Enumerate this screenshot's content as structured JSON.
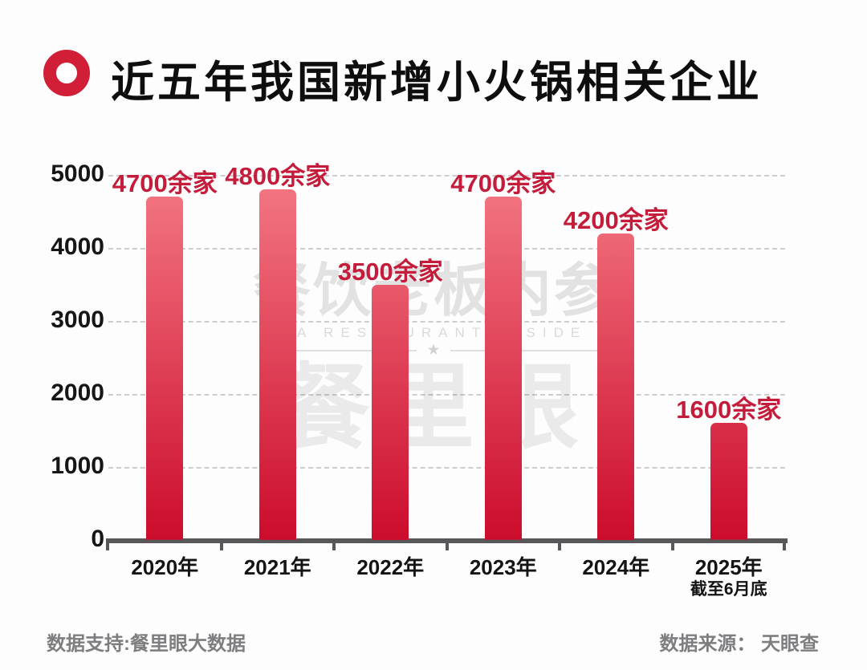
{
  "header": {
    "title": "近五年我国新增小火锅相关企业"
  },
  "chart_data": {
    "type": "bar",
    "title": "近五年我国新增小火锅相关企业",
    "categories": [
      "2020年",
      "2021年",
      "2022年",
      "2023年",
      "2024年",
      "2025年"
    ],
    "category_sublabels": [
      "",
      "",
      "",
      "",
      "",
      "截至6月底"
    ],
    "values": [
      4700,
      4800,
      3500,
      4700,
      4200,
      1600
    ],
    "bar_labels": [
      "4700余家",
      "4800余家",
      "3500余家",
      "4700余家",
      "4200余家",
      "1600余家"
    ],
    "xlabel": "",
    "ylabel": "",
    "ylim": [
      0,
      5000
    ],
    "yticks": [
      0,
      1000,
      2000,
      3000,
      4000,
      5000
    ],
    "grid": "horizontal-dashed",
    "legend": "none",
    "colors": {
      "bar_gradient_top": "#f47984",
      "bar_gradient_bottom": "#cc0c2c",
      "bar_value_label": "#c41d3c",
      "axis": "#58585a",
      "gridline": "#cdcdcd",
      "tick_label": "#161616",
      "title_icon": "#d01f36"
    }
  },
  "watermark": {
    "line1": "餐饮老板内参",
    "line2": "NA RESTAURANT INSIDE",
    "star": "★",
    "line3": "餐里眼"
  },
  "footer": {
    "left": "数据支持:餐里眼大数据",
    "right": "数据来源： 天眼查"
  }
}
